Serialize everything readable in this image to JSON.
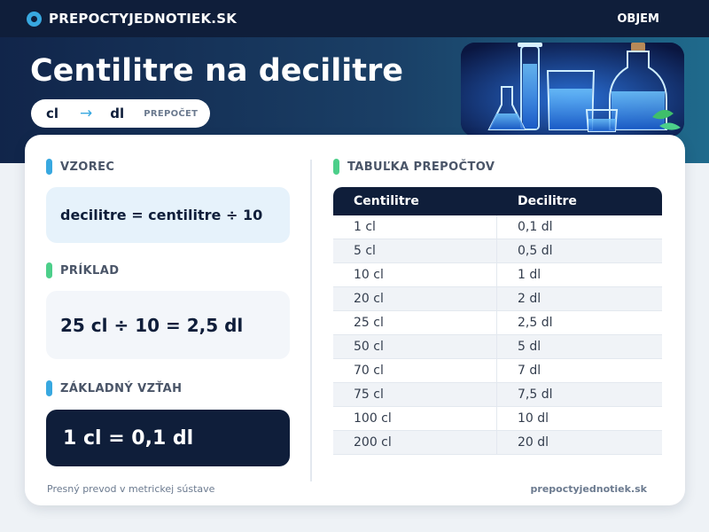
{
  "header": {
    "brand": "PREPOCTYJEDNOTIEK.SK",
    "nav_item": "OBJEM"
  },
  "hero": {
    "title": "Centilitre na decilitre",
    "from_unit": "cl",
    "to_unit": "dl",
    "arrow": "→",
    "tag": "PREPOČET"
  },
  "left": {
    "formula_title": "VZOREC",
    "formula": "decilitre = centilitre ÷ 10",
    "example_title": "PRÍKLAD",
    "example": "25 cl ÷ 10 = 2,5 dl",
    "base_title": "ZÁKLADNÝ VZŤAH",
    "base": "1 cl = 0,1 dl"
  },
  "table": {
    "title": "TABUĽKA PREPOČTOV",
    "headers": [
      "Centilitre",
      "Decilitre"
    ],
    "rows": [
      [
        "1 cl",
        "0,1 dl"
      ],
      [
        "5 cl",
        "0,5 dl"
      ],
      [
        "10 cl",
        "1 dl"
      ],
      [
        "20 cl",
        "2 dl"
      ],
      [
        "25 cl",
        "2,5 dl"
      ],
      [
        "50 cl",
        "5 dl"
      ],
      [
        "70 cl",
        "7 dl"
      ],
      [
        "75 cl",
        "7,5 dl"
      ],
      [
        "100 cl",
        "10 dl"
      ],
      [
        "200 cl",
        "20 dl"
      ]
    ]
  },
  "footer": {
    "left": "Presný prevod v metrickej sústave",
    "right": "prepoctyjednotiek.sk"
  },
  "colors": {
    "navy": "#0f1e3a",
    "accent_blue": "#38a8e0",
    "accent_green": "#4ccf8a"
  }
}
